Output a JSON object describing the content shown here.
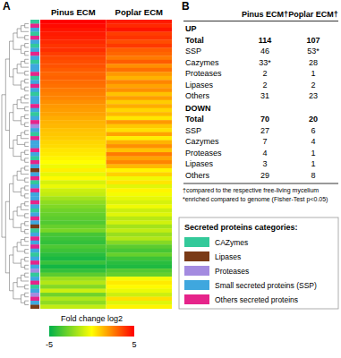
{
  "chart_data": {
    "type": "heatmap",
    "annotations": [
      "A"
    ],
    "x": [
      "Pinus ECM",
      "Poplar ECM"
    ],
    "cells": [
      [
        5,
        4.5
      ],
      [
        4.8,
        4.2
      ],
      [
        4.6,
        4.6
      ],
      [
        4.5,
        3.8
      ],
      [
        4.4,
        4.0
      ],
      [
        4.2,
        3.5
      ],
      [
        4.0,
        3.9
      ],
      [
        4.1,
        3.2
      ],
      [
        3.8,
        3.0
      ],
      [
        3.6,
        2.6
      ],
      [
        3.5,
        3.2
      ],
      [
        3.4,
        2.2
      ],
      [
        3.2,
        2.8
      ],
      [
        3.0,
        2.0
      ],
      [
        3.1,
        1.5
      ],
      [
        2.9,
        2.4
      ],
      [
        2.8,
        1.8
      ],
      [
        2.6,
        2.2
      ],
      [
        2.5,
        1.2
      ],
      [
        2.4,
        1.9
      ],
      [
        2.2,
        1.0
      ],
      [
        2.0,
        1.6
      ],
      [
        1.9,
        0.8
      ],
      [
        1.8,
        1.4
      ],
      [
        1.6,
        0.5
      ],
      [
        1.5,
        2.0
      ],
      [
        1.4,
        1.1
      ],
      [
        1.2,
        0.6
      ],
      [
        1.1,
        1.8
      ],
      [
        1.0,
        0.3
      ],
      [
        0.8,
        1.5
      ],
      [
        0.7,
        2.2
      ],
      [
        0.5,
        1.2
      ],
      [
        0.4,
        2.6
      ],
      [
        0.2,
        1.8
      ],
      [
        0.0,
        2.4
      ],
      [
        -0.3,
        1.4
      ],
      [
        0.3,
        0.2
      ],
      [
        -0.5,
        0.9
      ],
      [
        0.1,
        -0.3
      ],
      [
        -0.8,
        0.5
      ],
      [
        -0.4,
        -0.6
      ],
      [
        -1.0,
        0.2
      ],
      [
        -1.2,
        -0.2
      ],
      [
        -1.8,
        -0.5
      ],
      [
        -2.2,
        -0.8
      ],
      [
        -2.5,
        -0.3
      ],
      [
        -2.8,
        -1.0
      ],
      [
        -3.0,
        -0.6
      ],
      [
        -3.2,
        -1.4
      ],
      [
        -3.4,
        -0.9
      ],
      [
        -3.0,
        -1.8
      ],
      [
        -2.6,
        -1.2
      ],
      [
        -3.6,
        -2.0
      ],
      [
        -3.8,
        -1.5
      ],
      [
        -4.0,
        -2.4
      ],
      [
        -3.5,
        -3.2
      ],
      [
        -3.8,
        -3.6
      ],
      [
        -4.2,
        -3.0
      ],
      [
        -4.5,
        -3.8
      ],
      [
        -3.9,
        -4.2
      ],
      [
        -4.6,
        -4.4
      ],
      [
        -4.0,
        -3.4
      ],
      [
        -3.2,
        -3.0
      ],
      [
        -2.0,
        -0.2
      ],
      [
        -1.5,
        0.4
      ],
      [
        -2.4,
        0.1
      ],
      [
        -1.0,
        -0.4
      ],
      [
        -2.8,
        -1.0
      ],
      [
        -1.6,
        0.6
      ],
      [
        -2.2,
        -0.6
      ],
      [
        -1.2,
        0.2
      ]
    ],
    "row_categories": [
      "CAZymes",
      "Others secreted proteins",
      "Small secreted proteins (SSP)",
      "CAZymes",
      "Others secreted proteins",
      "Small secreted proteins (SSP)",
      "CAZymes",
      "Small secreted proteins (SSP)",
      "Others secreted proteins",
      "Small secreted proteins (SSP)",
      "CAZymes",
      "Small secreted proteins (SSP)",
      "Small secreted proteins (SSP)",
      "Others secreted proteins",
      "CAZymes",
      "Small secreted proteins (SSP)",
      "Others secreted proteins",
      "Small secreted proteins (SSP)",
      "CAZymes",
      "Small secreted proteins (SSP)",
      "Small secreted proteins (SSP)",
      "Others secreted proteins",
      "Small secreted proteins (SSP)",
      "CAZymes",
      "Small secreted proteins (SSP)",
      "Others secreted proteins",
      "Proteases",
      "Small secreted proteins (SSP)",
      "CAZymes",
      "Others secreted proteins",
      "Small secreted proteins (SSP)",
      "Small secreted proteins (SSP)",
      "Others secreted proteins",
      "Small secreted proteins (SSP)",
      "CAZymes",
      "Others secreted proteins",
      "Small secreted proteins (SSP)",
      "Lipases",
      "Small secreted proteins (SSP)",
      "Others secreted proteins",
      "CAZymes",
      "Small secreted proteins (SSP)",
      "Others secreted proteins",
      "Small secreted proteins (SSP)",
      "Small secreted proteins (SSP)",
      "Others secreted proteins",
      "Small secreted proteins (SSP)",
      "CAZymes",
      "Small secreted proteins (SSP)",
      "Others secreted proteins",
      "Small secreted proteins (SSP)",
      "Lipases",
      "CAZymes",
      "Small secreted proteins (SSP)",
      "Others secreted proteins",
      "Small secreted proteins (SSP)",
      "Others secreted proteins",
      "Small secreted proteins (SSP)",
      "CAZymes",
      "Small secreted proteins (SSP)",
      "Others secreted proteins",
      "Small secreted proteins (SSP)",
      "Proteases",
      "CAZymes",
      "Small secreted proteins (SSP)",
      "Others secreted proteins",
      "CAZymes",
      "Small secreted proteins (SSP)",
      "Proteases",
      "Others secreted proteins",
      "Small secreted proteins (SSP)",
      "Lipases"
    ],
    "colorbar": {
      "label": "Fold change log2",
      "range": [
        -5,
        5
      ],
      "ticks": [
        -5,
        5
      ]
    },
    "legend_title": "Secreted proteins categories:",
    "row_groups": [
      {
        "name": "CAZymes",
        "color": "#33c99a"
      },
      {
        "name": "Lipases",
        "color": "#7a3a16"
      },
      {
        "name": "Proteases",
        "color": "#a48be0"
      },
      {
        "name": "Small secreted proteins (SSP)",
        "color": "#3fa7de"
      },
      {
        "name": "Others secreted proteins",
        "color": "#e6248a"
      }
    ]
  },
  "table": {
    "title": "B",
    "columns": [
      "Pinus ECM†",
      "Poplar ECM†"
    ],
    "sections": [
      {
        "name": "UP",
        "rows": [
          [
            "Total",
            "114",
            "107"
          ],
          [
            "SSP",
            "46",
            "53*"
          ],
          [
            "Cazymes",
            "33*",
            "28"
          ],
          [
            "Proteases",
            "2",
            "1"
          ],
          [
            "Lipases",
            "2",
            "2"
          ],
          [
            "Others",
            "31",
            "23"
          ]
        ]
      },
      {
        "name": "DOWN",
        "rows": [
          [
            "Total",
            "70",
            "20"
          ],
          [
            "SSP",
            "27",
            "6"
          ],
          [
            "Cazymes",
            "7",
            "4"
          ],
          [
            "Proteases",
            "4",
            "1"
          ],
          [
            "Lipases",
            "3",
            "1"
          ],
          [
            "Others",
            "29",
            "8"
          ]
        ]
      }
    ],
    "footnotes": [
      "†compared to the respective free-living mycelium",
      "*enriched compared to genome (Fisher-Test p<0.05)"
    ]
  }
}
